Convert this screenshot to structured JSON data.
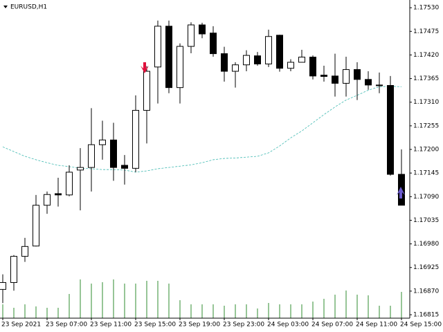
{
  "chart_data": {
    "type": "candlestick",
    "title": "EURUSD,H1",
    "categories": [
      "23 Sep 2021",
      null,
      null,
      null,
      "23 Sep 07:00",
      null,
      null,
      null,
      "23 Sep 11:00",
      null,
      null,
      null,
      "23 Sep 15:00",
      null,
      null,
      null,
      "23 Sep 19:00",
      null,
      null,
      null,
      "23 Sep 23:00",
      null,
      null,
      null,
      "24 Sep 03:00",
      null,
      null,
      null,
      "24 Sep 07:00",
      null,
      null,
      null,
      "24 Sep 11:00",
      null,
      null,
      null,
      "24 Sep 15:00"
    ],
    "open": [
      1.16874,
      1.1689,
      1.16951,
      1.16975,
      1.1707,
      1.17097,
      1.17094,
      1.17152,
      1.17158,
      1.17211,
      1.17222,
      1.17163,
      1.17156,
      1.17291,
      1.17392,
      1.17487,
      1.17344,
      1.1744,
      1.1749,
      1.17471,
      1.17423,
      1.17382,
      1.17397,
      1.17418,
      1.17399,
      1.17466,
      1.17389,
      1.17403,
      1.17415,
      1.17373,
      1.17371,
      1.17354,
      1.17386,
      1.17363,
      1.1735,
      1.17349,
      1.17142
    ],
    "high": [
      1.16909,
      1.16954,
      1.16994,
      1.17094,
      1.17102,
      1.17134,
      1.17163,
      1.17203,
      1.17296,
      1.17267,
      1.17262,
      1.17187,
      1.17326,
      1.17394,
      1.175,
      1.175,
      1.17447,
      1.17496,
      1.17495,
      1.17487,
      1.17439,
      1.17403,
      1.17431,
      1.17427,
      1.17479,
      1.17467,
      1.1741,
      1.17432,
      1.17419,
      1.17395,
      1.17423,
      1.17416,
      1.17403,
      1.17382,
      1.17379,
      1.17371,
      1.172
    ],
    "low": [
      1.16842,
      1.16871,
      1.16938,
      1.16974,
      1.1705,
      1.17067,
      1.17091,
      1.17058,
      1.17102,
      1.17176,
      1.17127,
      1.17118,
      1.17147,
      1.17214,
      1.17307,
      1.17331,
      1.17307,
      1.17424,
      1.17459,
      1.17416,
      1.17358,
      1.17344,
      1.17382,
      1.17395,
      1.17392,
      1.17381,
      1.17382,
      1.17403,
      1.17363,
      1.17358,
      1.17323,
      1.17323,
      1.17315,
      1.17339,
      1.17331,
      1.17139,
      1.1707
    ],
    "close": [
      1.1689,
      1.16951,
      1.16974,
      1.1707,
      1.17095,
      1.17094,
      1.17147,
      1.17158,
      1.17211,
      1.17222,
      1.17158,
      1.17156,
      1.17291,
      1.17382,
      1.17487,
      1.17344,
      1.1744,
      1.1749,
      1.17469,
      1.17423,
      1.17382,
      1.17397,
      1.17419,
      1.17399,
      1.17463,
      1.17389,
      1.17403,
      1.17415,
      1.17371,
      1.1737,
      1.17354,
      1.17386,
      1.17363,
      1.1735,
      1.17349,
      1.17142,
      1.1707
    ],
    "ma": [
      1.17206,
      1.17195,
      1.17184,
      1.17176,
      1.17169,
      1.17163,
      1.1716,
      1.17156,
      1.17155,
      1.17153,
      1.17153,
      1.17152,
      1.17147,
      1.1715,
      1.17155,
      1.17158,
      1.17161,
      1.17164,
      1.17169,
      1.17176,
      1.17179,
      1.1718,
      1.17182,
      1.17184,
      1.17192,
      1.17208,
      1.17227,
      1.17243,
      1.17262,
      1.17281,
      1.17299,
      1.17315,
      1.17326,
      1.17338,
      1.17346,
      1.17347,
      1.17346
    ],
    "volume": [
      20,
      15,
      20,
      17,
      15,
      15,
      35,
      56,
      50,
      52,
      56,
      50,
      50,
      54,
      54,
      50,
      26,
      20,
      20,
      20,
      18,
      20,
      20,
      14,
      22,
      20,
      20,
      20,
      24,
      28,
      34,
      40,
      34,
      33,
      18,
      18,
      38
    ],
    "vlim": [
      0,
      100
    ],
    "up_color": "#ffffff",
    "down_color": "#000000",
    "ma_color": "#3cb8b0",
    "volume_color": "#2e8b2e",
    "ylim": [
      1.16807,
      1.17548
    ],
    "yticks": [
      {
        "value": 1.1753,
        "label": "1.17530"
      },
      {
        "value": 1.17475,
        "label": "1.17475"
      },
      {
        "value": 1.1742,
        "label": "1.17420"
      },
      {
        "value": 1.17365,
        "label": "1.17365"
      },
      {
        "value": 1.1731,
        "label": "1.17310"
      },
      {
        "value": 1.17255,
        "label": "1.17255"
      },
      {
        "value": 1.172,
        "label": "1.17200"
      },
      {
        "value": 1.17145,
        "label": "1.17145"
      },
      {
        "value": 1.1709,
        "label": "1.17090"
      },
      {
        "value": 1.17035,
        "label": "1.17035"
      },
      {
        "value": 1.1698,
        "label": "1.16980"
      },
      {
        "value": 1.16925,
        "label": "1.16925"
      },
      {
        "value": 1.1687,
        "label": "1.16870"
      },
      {
        "value": 1.16815,
        "label": "1.16815"
      }
    ]
  }
}
